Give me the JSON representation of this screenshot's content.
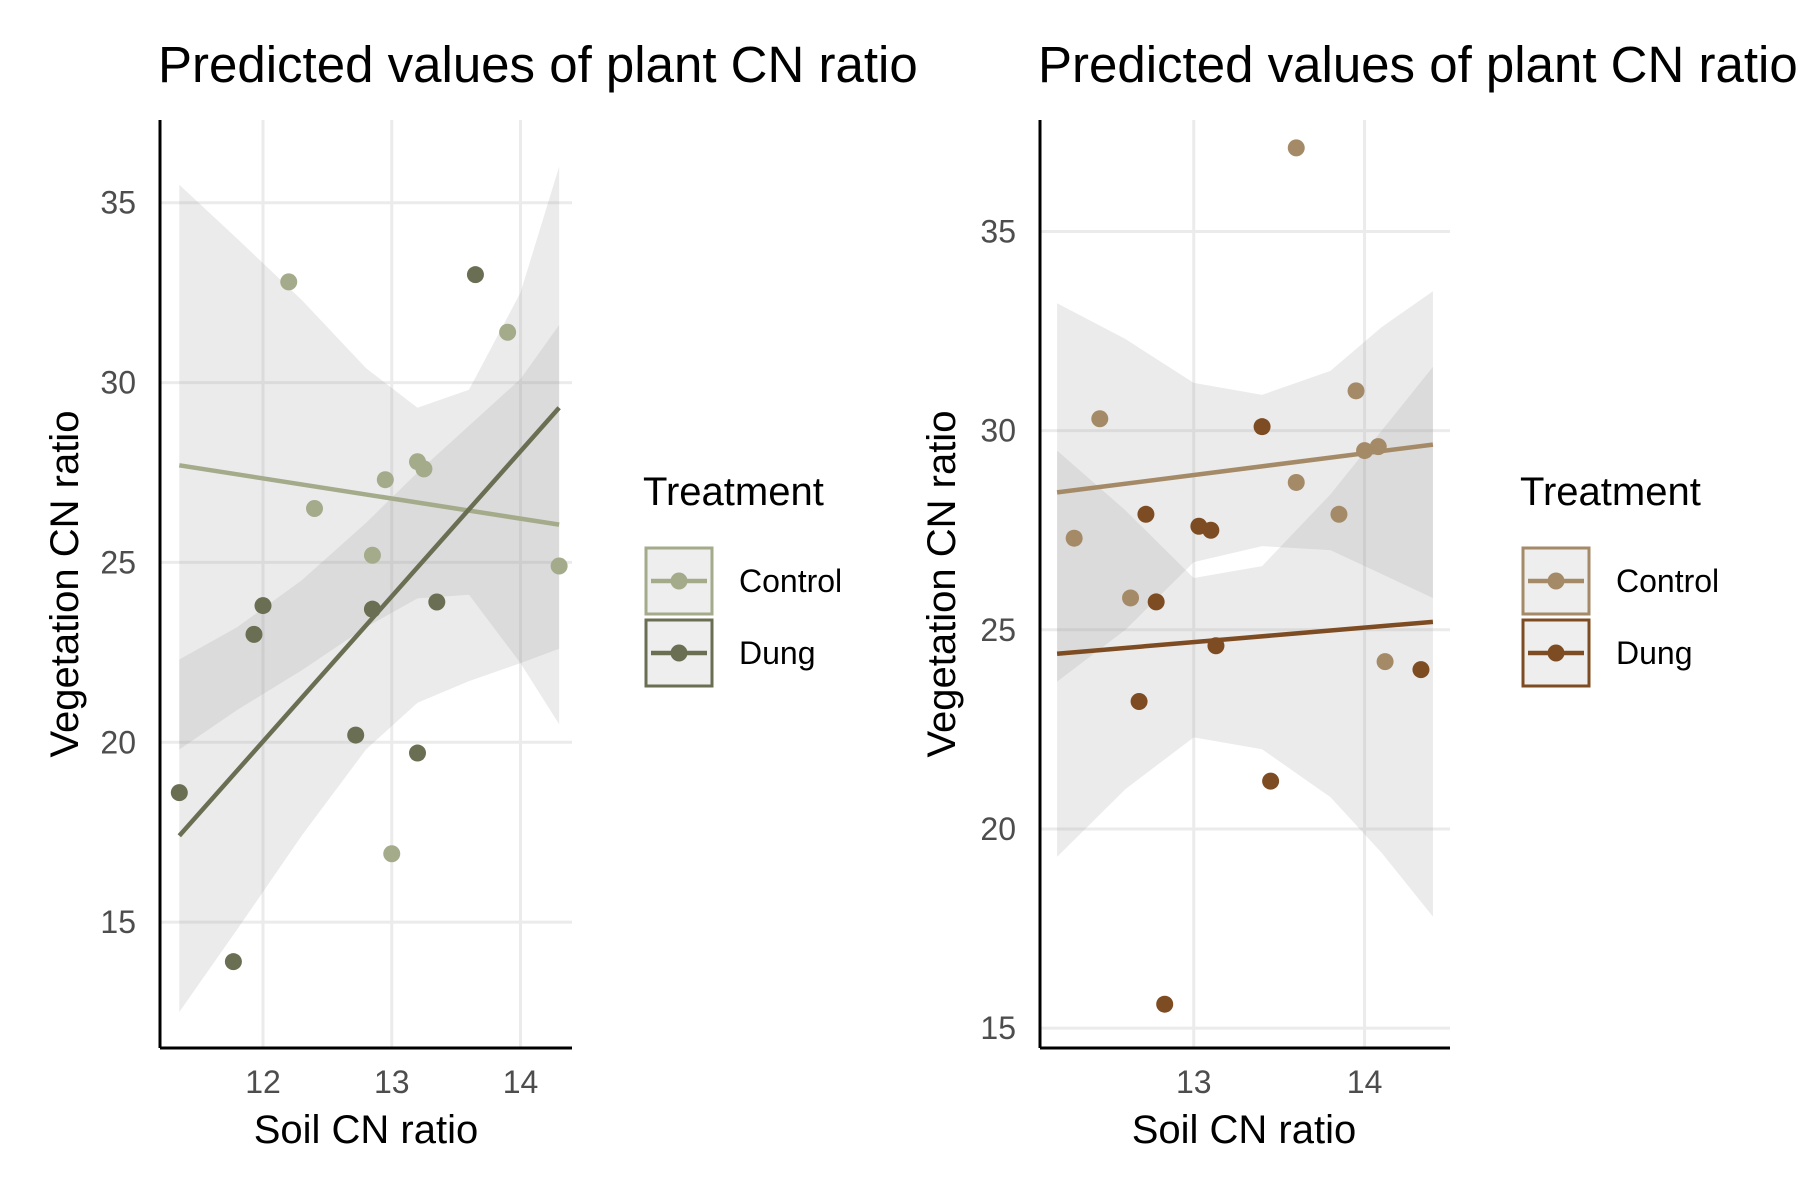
{
  "chart_data": [
    {
      "type": "scatter",
      "title": "Predicted values of plant CN ratio",
      "xlabel": "Soil CN ratio",
      "ylabel": "Vegetation CN ratio",
      "xlim": [
        11.2,
        14.4
      ],
      "ylim": [
        11.5,
        37.3
      ],
      "x_ticks": [
        12,
        13,
        14
      ],
      "y_ticks": [
        15,
        20,
        25,
        30,
        35
      ],
      "grid": true,
      "legend": {
        "title": "Treatment",
        "position": "right"
      },
      "series": [
        {
          "name": "Control",
          "color": "#a3ab8b",
          "points": [
            [
              12.2,
              32.8
            ],
            [
              13.9,
              31.4
            ],
            [
              13.2,
              27.8
            ],
            [
              13.25,
              27.6
            ],
            [
              12.95,
              27.3
            ],
            [
              12.4,
              26.5
            ],
            [
              12.85,
              25.2
            ],
            [
              14.3,
              24.9
            ],
            [
              13.0,
              16.9
            ]
          ],
          "fit": [
            [
              11.35,
              27.7
            ],
            [
              14.3,
              26.05
            ]
          ],
          "ci_upper": [
            [
              11.35,
              35.5
            ],
            [
              11.8,
              34.0
            ],
            [
              12.3,
              32.3
            ],
            [
              12.8,
              30.4
            ],
            [
              13.2,
              29.3
            ],
            [
              13.6,
              29.8
            ],
            [
              14.0,
              32.5
            ],
            [
              14.3,
              36.0
            ]
          ],
          "ci_lower": [
            [
              11.35,
              19.8
            ],
            [
              11.8,
              20.9
            ],
            [
              12.3,
              22.0
            ],
            [
              12.8,
              23.2
            ],
            [
              13.2,
              24.0
            ],
            [
              13.6,
              24.1
            ],
            [
              14.0,
              22.2
            ],
            [
              14.3,
              20.5
            ]
          ]
        },
        {
          "name": "Dung",
          "color": "#6a6e52",
          "points": [
            [
              13.65,
              33.0
            ],
            [
              12.0,
              23.8
            ],
            [
              11.93,
              23.0
            ],
            [
              12.85,
              23.7
            ],
            [
              13.35,
              23.9
            ],
            [
              12.72,
              20.2
            ],
            [
              13.2,
              19.7
            ],
            [
              11.35,
              18.6
            ],
            [
              11.77,
              13.9
            ]
          ],
          "fit": [
            [
              11.35,
              17.4
            ],
            [
              14.3,
              29.3
            ]
          ],
          "ci_upper": [
            [
              11.35,
              22.3
            ],
            [
              11.8,
              23.2
            ],
            [
              12.3,
              24.5
            ],
            [
              12.8,
              26.1
            ],
            [
              13.2,
              27.5
            ],
            [
              13.6,
              28.8
            ],
            [
              14.0,
              30.1
            ],
            [
              14.3,
              31.6
            ]
          ],
          "ci_lower": [
            [
              11.35,
              12.5
            ],
            [
              11.8,
              14.8
            ],
            [
              12.3,
              17.4
            ],
            [
              12.8,
              19.8
            ],
            [
              13.2,
              21.1
            ],
            [
              13.6,
              21.7
            ],
            [
              14.0,
              22.2
            ],
            [
              14.3,
              22.6
            ]
          ]
        }
      ]
    },
    {
      "type": "scatter",
      "title": "Predicted values of plant CN ratio",
      "xlabel": "Soil CN ratio",
      "ylabel": "Vegetation CN ratio",
      "xlim": [
        12.1,
        14.5
      ],
      "ylim": [
        14.5,
        37.8
      ],
      "x_ticks": [
        13,
        14
      ],
      "y_ticks": [
        15,
        20,
        25,
        30,
        35
      ],
      "grid": true,
      "legend": {
        "title": "Treatment",
        "position": "right"
      },
      "series": [
        {
          "name": "Control",
          "color": "#a58a68",
          "points": [
            [
              13.6,
              37.1
            ],
            [
              12.45,
              30.3
            ],
            [
              13.95,
              31.0
            ],
            [
              14.0,
              29.5
            ],
            [
              14.08,
              29.6
            ],
            [
              13.6,
              28.7
            ],
            [
              13.85,
              27.9
            ],
            [
              12.3,
              27.3
            ],
            [
              12.63,
              25.8
            ],
            [
              14.12,
              24.2
            ]
          ],
          "fit": [
            [
              12.2,
              28.45
            ],
            [
              14.4,
              29.65
            ]
          ],
          "ci_upper": [
            [
              12.2,
              33.2
            ],
            [
              12.6,
              32.3
            ],
            [
              13.0,
              31.2
            ],
            [
              13.4,
              30.9
            ],
            [
              13.8,
              31.5
            ],
            [
              14.1,
              32.6
            ],
            [
              14.4,
              33.5
            ]
          ],
          "ci_lower": [
            [
              12.2,
              23.7
            ],
            [
              12.6,
              25.0
            ],
            [
              13.0,
              26.7
            ],
            [
              13.4,
              27.1
            ],
            [
              13.8,
              27.0
            ],
            [
              14.1,
              26.4
            ],
            [
              14.4,
              25.8
            ]
          ]
        },
        {
          "name": "Dung",
          "color": "#7e4c22",
          "points": [
            [
              13.4,
              30.1
            ],
            [
              12.72,
              27.9
            ],
            [
              13.03,
              27.6
            ],
            [
              13.1,
              27.5
            ],
            [
              12.78,
              25.7
            ],
            [
              13.13,
              24.6
            ],
            [
              14.33,
              24.0
            ],
            [
              12.68,
              23.2
            ],
            [
              13.45,
              21.2
            ],
            [
              12.83,
              15.6
            ]
          ],
          "fit": [
            [
              12.2,
              24.4
            ],
            [
              14.4,
              25.2
            ]
          ],
          "ci_upper": [
            [
              12.2,
              29.5
            ],
            [
              12.6,
              28.0
            ],
            [
              13.0,
              26.3
            ],
            [
              13.4,
              26.6
            ],
            [
              13.8,
              28.4
            ],
            [
              14.1,
              30.0
            ],
            [
              14.4,
              31.6
            ]
          ],
          "ci_lower": [
            [
              12.2,
              19.3
            ],
            [
              12.6,
              21.0
            ],
            [
              13.0,
              22.3
            ],
            [
              13.4,
              22.0
            ],
            [
              13.8,
              20.8
            ],
            [
              14.1,
              19.4
            ],
            [
              14.4,
              17.8
            ]
          ]
        }
      ]
    }
  ]
}
